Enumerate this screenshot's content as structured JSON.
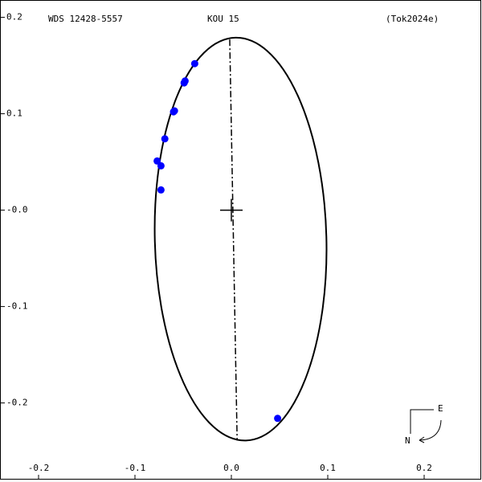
{
  "chart_data": {
    "type": "scatter",
    "title": "WDS 12428-5557",
    "subtitle": "KOU  15",
    "reference": "(Tok2024e)",
    "xlim": [
      -0.24,
      0.26
    ],
    "ylim": [
      -0.282,
      0.218
    ],
    "xticks": [
      -0.2,
      -0.1,
      {
        "value": 0,
        "label": "0.0"
      },
      0.1,
      0.2
    ],
    "yticks": [
      0.2,
      0.1,
      {
        "value": 0,
        "label": "-0.0"
      },
      -0.1,
      -0.2
    ],
    "series": [
      {
        "color": "#0000ff",
        "x": [
          -0.038,
          -0.049,
          -0.048,
          -0.059,
          -0.06,
          -0.069,
          -0.077,
          -0.073,
          -0.073,
          0.048
        ],
        "values": [
          0.152,
          0.132,
          0.134,
          0.103,
          0.102,
          0.074,
          0.051,
          0.046,
          0.021,
          -0.216
        ]
      }
    ],
    "orbit": {
      "center": [
        0.0096,
        -0.03
      ],
      "semi_axes": [
        0.089,
        0.209
      ],
      "tilt_deg": -1.5
    },
    "node_line": {
      "x": [
        -0.0017,
        0.006
      ],
      "y": [
        0.177,
        -0.239
      ]
    },
    "primary": [
      0,
      0
    ],
    "compass": {
      "east": "E",
      "north": "N"
    }
  }
}
